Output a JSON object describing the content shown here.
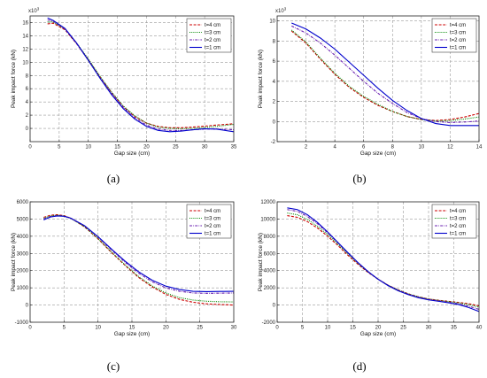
{
  "figure": {
    "captions": [
      "(a)",
      "(b)",
      "(c)",
      "(d)"
    ]
  },
  "chart_data": [
    {
      "type": "line",
      "caption": "(a)",
      "xlabel": "Gap size (cm)",
      "ylabel": "Peak impact force (kN)",
      "multiplier_label": "x10",
      "multiplier_exp": "3",
      "xlim": [
        0,
        35
      ],
      "ylim": [
        -2,
        17
      ],
      "xticks": [
        0,
        5,
        10,
        15,
        20,
        25,
        30,
        35
      ],
      "yticks": [
        0,
        2,
        4,
        6,
        8,
        10,
        12,
        14,
        16
      ],
      "legend_position": "top-right",
      "series": [
        {
          "name": "t=4 cm",
          "color": "#cc0000",
          "dash": "dashed",
          "x": [
            3,
            4,
            6,
            8,
            10,
            12,
            14,
            16,
            18,
            20,
            22,
            24,
            26,
            28,
            30,
            32,
            35
          ],
          "y": [
            15.8,
            15.9,
            14.9,
            12.8,
            10.4,
            7.8,
            5.4,
            3.3,
            1.8,
            0.8,
            0.3,
            0.1,
            0.1,
            0.2,
            0.35,
            0.5,
            0.7
          ]
        },
        {
          "name": "t=3 cm",
          "color": "#008800",
          "dash": "dotted",
          "x": [
            3,
            4,
            6,
            8,
            10,
            12,
            14,
            16,
            18,
            20,
            22,
            24,
            26,
            28,
            30,
            32,
            35
          ],
          "y": [
            16.1,
            16.1,
            15.0,
            12.9,
            10.5,
            7.9,
            5.5,
            3.4,
            1.9,
            0.8,
            0.2,
            0.0,
            -0.05,
            0.0,
            0.15,
            0.3,
            0.6
          ]
        },
        {
          "name": "t=2 cm",
          "color": "#6a1fb0",
          "dash": "dashdot",
          "x": [
            3,
            4,
            6,
            8,
            10,
            12,
            14,
            16,
            18,
            20,
            22,
            24,
            26,
            28,
            30,
            32,
            35
          ],
          "y": [
            16.4,
            16.2,
            15.0,
            12.8,
            10.3,
            7.7,
            5.3,
            3.2,
            1.6,
            0.5,
            -0.1,
            -0.3,
            -0.3,
            -0.2,
            -0.1,
            -0.1,
            -0.2
          ]
        },
        {
          "name": "t=1 cm",
          "color": "#0000cc",
          "dash": "solid",
          "x": [
            3,
            4,
            6,
            8,
            10,
            12,
            14,
            16,
            18,
            20,
            22,
            24,
            26,
            28,
            30,
            32,
            35
          ],
          "y": [
            16.7,
            16.3,
            15.1,
            12.9,
            10.3,
            7.6,
            5.1,
            3.0,
            1.4,
            0.3,
            -0.3,
            -0.5,
            -0.4,
            -0.2,
            -0.05,
            -0.1,
            -0.5
          ]
        }
      ]
    },
    {
      "type": "line",
      "caption": "(b)",
      "xlabel": "Gap size (cm)",
      "ylabel": "Peak impact force (kN)",
      "multiplier_label": "x10",
      "multiplier_exp": "3",
      "xlim": [
        0,
        14
      ],
      "ylim": [
        -2,
        10.5
      ],
      "xticks": [
        2,
        4,
        6,
        8,
        10,
        12,
        14
      ],
      "yticks": [
        -2,
        0,
        2,
        4,
        6,
        8,
        10
      ],
      "legend_position": "top-right",
      "series": [
        {
          "name": "t=4 cm",
          "color": "#cc0000",
          "dash": "dashed",
          "x": [
            1,
            2,
            3,
            4,
            5,
            6,
            7,
            8,
            9,
            10,
            11,
            12,
            13,
            14
          ],
          "y": [
            9.0,
            7.8,
            6.2,
            4.7,
            3.4,
            2.4,
            1.6,
            1.0,
            0.5,
            0.2,
            0.1,
            0.2,
            0.45,
            0.8
          ]
        },
        {
          "name": "t=3 cm",
          "color": "#008800",
          "dash": "dotted",
          "x": [
            1,
            2,
            3,
            4,
            5,
            6,
            7,
            8,
            9,
            10,
            11,
            12,
            13,
            14
          ],
          "y": [
            9.1,
            7.9,
            6.3,
            4.8,
            3.5,
            2.5,
            1.7,
            1.0,
            0.5,
            0.2,
            0.05,
            0.1,
            0.25,
            0.45
          ]
        },
        {
          "name": "t=2 cm",
          "color": "#6a1fb0",
          "dash": "dashdot",
          "x": [
            1,
            2,
            3,
            4,
            5,
            6,
            7,
            8,
            9,
            10,
            11,
            12,
            13,
            14
          ],
          "y": [
            9.5,
            8.8,
            7.8,
            6.6,
            5.3,
            4.0,
            2.8,
            1.8,
            0.9,
            0.3,
            0.0,
            -0.1,
            -0.05,
            0.05
          ]
        },
        {
          "name": "t=1 cm",
          "color": "#0000cc",
          "dash": "solid",
          "x": [
            1,
            2,
            3,
            4,
            5,
            6,
            7,
            8,
            9,
            10,
            11,
            12,
            13,
            14
          ],
          "y": [
            9.8,
            9.2,
            8.3,
            7.2,
            5.9,
            4.6,
            3.3,
            2.1,
            1.1,
            0.3,
            -0.2,
            -0.4,
            -0.4,
            -0.4
          ]
        }
      ]
    },
    {
      "type": "line",
      "caption": "(c)",
      "xlabel": "Gap size (cm)",
      "ylabel": "Peak impact force (kN)",
      "xlim": [
        0,
        30
      ],
      "ylim": [
        -1000,
        6000
      ],
      "xticks": [
        0,
        5,
        10,
        15,
        20,
        25,
        30
      ],
      "yticks": [
        -1000,
        0,
        1000,
        2000,
        3000,
        4000,
        5000,
        6000
      ],
      "legend_position": "top-right",
      "series": [
        {
          "name": "t=4 cm",
          "color": "#cc0000",
          "dash": "dashed",
          "x": [
            2,
            3,
            4,
            5,
            6,
            8,
            10,
            12,
            14,
            16,
            18,
            20,
            22,
            24,
            26,
            28,
            30
          ],
          "y": [
            5100,
            5220,
            5250,
            5200,
            5050,
            4550,
            3850,
            3050,
            2300,
            1600,
            1050,
            620,
            330,
            160,
            70,
            30,
            0
          ]
        },
        {
          "name": "t=3 cm",
          "color": "#008800",
          "dash": "dotted",
          "x": [
            2,
            3,
            4,
            5,
            6,
            8,
            10,
            12,
            14,
            16,
            18,
            20,
            22,
            24,
            26,
            28,
            30
          ],
          "y": [
            5050,
            5180,
            5220,
            5180,
            5040,
            4560,
            3870,
            3080,
            2330,
            1650,
            1110,
            700,
            430,
            290,
            220,
            190,
            180
          ]
        },
        {
          "name": "t=2 cm",
          "color": "#6a1fb0",
          "dash": "dashdot",
          "x": [
            2,
            3,
            4,
            5,
            6,
            8,
            10,
            12,
            14,
            16,
            18,
            20,
            22,
            24,
            26,
            28,
            30
          ],
          "y": [
            5000,
            5150,
            5200,
            5170,
            5050,
            4600,
            3950,
            3200,
            2480,
            1850,
            1350,
            1000,
            800,
            700,
            680,
            690,
            700
          ]
        },
        {
          "name": "t=1 cm",
          "color": "#0000cc",
          "dash": "solid",
          "x": [
            2,
            3,
            4,
            5,
            6,
            8,
            10,
            12,
            14,
            16,
            18,
            20,
            22,
            24,
            26,
            28,
            30
          ],
          "y": [
            4950,
            5120,
            5180,
            5160,
            5050,
            4620,
            3980,
            3250,
            2550,
            1930,
            1440,
            1100,
            900,
            800,
            780,
            790,
            800
          ]
        }
      ]
    },
    {
      "type": "line",
      "caption": "(d)",
      "xlabel": "Gap size (cm)",
      "ylabel": "Peak impact force (kN)",
      "xlim": [
        0,
        40
      ],
      "ylim": [
        -2000,
        12000
      ],
      "xticks": [
        0,
        5,
        10,
        15,
        20,
        25,
        30,
        35,
        40
      ],
      "yticks": [
        -2000,
        0,
        2000,
        4000,
        6000,
        8000,
        10000,
        12000
      ],
      "legend_position": "top-right",
      "series": [
        {
          "name": "t=4 cm",
          "color": "#cc0000",
          "dash": "dashed",
          "x": [
            2,
            4,
            6,
            8,
            10,
            12,
            14,
            16,
            18,
            20,
            22,
            24,
            26,
            28,
            30,
            32,
            34,
            36,
            38,
            40
          ],
          "y": [
            10400,
            10200,
            9700,
            8950,
            8000,
            6950,
            5800,
            4750,
            3800,
            3000,
            2300,
            1750,
            1300,
            950,
            700,
            550,
            430,
            300,
            150,
            -100
          ]
        },
        {
          "name": "t=3 cm",
          "color": "#008800",
          "dash": "dotted",
          "x": [
            2,
            4,
            6,
            8,
            10,
            12,
            14,
            16,
            18,
            20,
            22,
            24,
            26,
            28,
            30,
            32,
            34,
            36,
            38,
            40
          ],
          "y": [
            10700,
            10500,
            9950,
            9150,
            8200,
            7100,
            5950,
            4850,
            3850,
            3000,
            2300,
            1750,
            1300,
            950,
            700,
            540,
            400,
            250,
            50,
            -250
          ]
        },
        {
          "name": "t=2 cm",
          "color": "#6a1fb0",
          "dash": "dashdot",
          "x": [
            2,
            4,
            6,
            8,
            10,
            12,
            14,
            16,
            18,
            20,
            22,
            24,
            26,
            28,
            30,
            32,
            34,
            36,
            38,
            40
          ],
          "y": [
            11100,
            10900,
            10300,
            9450,
            8400,
            7250,
            6050,
            4900,
            3850,
            3000,
            2300,
            1700,
            1250,
            900,
            650,
            480,
            320,
            130,
            -150,
            -500
          ]
        },
        {
          "name": "t=1 cm",
          "color": "#0000cc",
          "dash": "solid",
          "x": [
            2,
            4,
            6,
            8,
            10,
            12,
            14,
            16,
            18,
            20,
            22,
            24,
            26,
            28,
            30,
            32,
            34,
            36,
            38,
            40
          ],
          "y": [
            11300,
            11100,
            10500,
            9600,
            8500,
            7300,
            6100,
            4950,
            3900,
            3000,
            2250,
            1650,
            1200,
            850,
            600,
            430,
            260,
            50,
            -300,
            -750
          ]
        }
      ]
    }
  ]
}
